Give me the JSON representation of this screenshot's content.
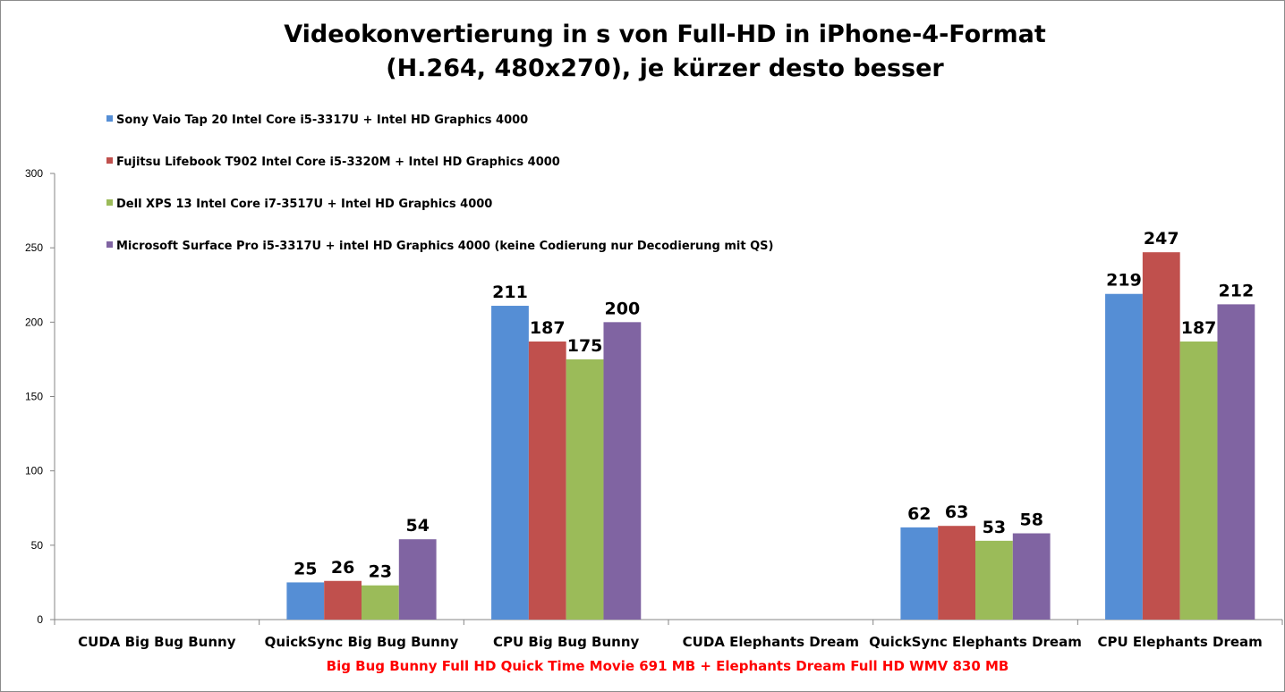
{
  "chart_data": {
    "type": "bar",
    "title": "Videokonvertierung in s von Full-HD in iPhone-4-Format",
    "subtitle": "(H.264, 480x270), je kürzer desto besser",
    "xlabel": "Big Bug Bunny Full HD Quick Time Movie 691 MB + Elephants Dream Full HD WMV 830 MB",
    "ylabel": "",
    "ylim": [
      0,
      300
    ],
    "yticks": [
      "0",
      "50",
      "100",
      "150",
      "200",
      "250",
      "300"
    ],
    "grid": false,
    "legend_position": "top-left",
    "categories": [
      "CUDA Big Bug Bunny",
      "QuickSync Big Bug Bunny",
      "CPU Big Bug Bunny",
      "CUDA Elephants Dream",
      "QuickSync Elephants Dream",
      "CPU Elephants Dream"
    ],
    "series": [
      {
        "name": "Sony Vaio Tap 20 Intel Core i5-3317U + Intel HD Graphics 4000",
        "color": "#558ED5",
        "values": [
          null,
          25,
          211,
          null,
          62,
          219
        ]
      },
      {
        "name": "Fujitsu Lifebook T902 Intel Core i5-3320M + Intel HD Graphics 4000",
        "color": "#C0504D",
        "values": [
          null,
          26,
          187,
          null,
          63,
          247
        ]
      },
      {
        "name": "Dell XPS 13 Intel Core i7-3517U + Intel HD Graphics 4000",
        "color": "#9BBB59",
        "values": [
          null,
          23,
          175,
          null,
          53,
          187
        ]
      },
      {
        "name": "Microsoft Surface Pro i5-3317U + intel HD Graphics 4000 (keine Codierung nur Decodierung mit QS)",
        "color": "#8064A2",
        "values": [
          null,
          54,
          200,
          null,
          58,
          212
        ]
      }
    ],
    "colors": {
      "axis": "#868686",
      "xlabel": "#FF0000"
    }
  }
}
